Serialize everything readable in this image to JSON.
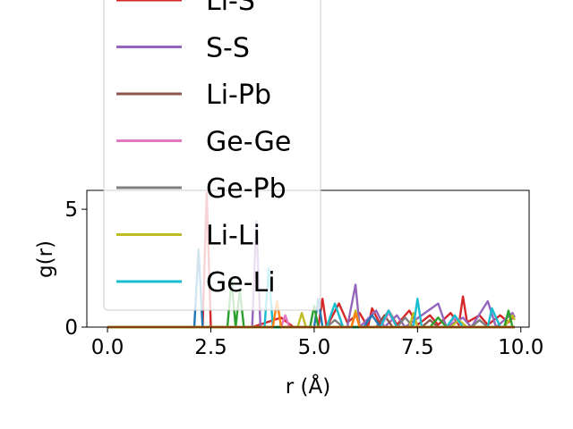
{
  "chart_data": {
    "type": "line",
    "xlabel": "r (Å)",
    "ylabel": "g(r)",
    "xlim": [
      -0.5,
      10.2
    ],
    "ylim": [
      0,
      5.8
    ],
    "xticks": [
      "0.0",
      "2.5",
      "5.0",
      "7.5",
      "10.0"
    ],
    "xtick_values": [
      0,
      2.5,
      5,
      7.5,
      10
    ],
    "yticks": [
      "0",
      "5"
    ],
    "ytick_values": [
      0,
      5
    ],
    "grid": false,
    "legend_position": "upper-left, overflowing above plot",
    "series": [
      {
        "name": "Li-S",
        "color": "#d62728",
        "points": [
          [
            0,
            0
          ],
          [
            2.3,
            0
          ],
          [
            2.4,
            5.7
          ],
          [
            2.5,
            0
          ],
          [
            3.5,
            0
          ],
          [
            4.2,
            0.4
          ],
          [
            4.5,
            0
          ],
          [
            5.1,
            0
          ],
          [
            5.2,
            1.2
          ],
          [
            5.3,
            0
          ],
          [
            5.6,
            1.0
          ],
          [
            5.8,
            0.2
          ],
          [
            6.1,
            0.6
          ],
          [
            6.3,
            0
          ],
          [
            6.4,
            0.8
          ],
          [
            6.6,
            0.1
          ],
          [
            6.8,
            0.7
          ],
          [
            7.0,
            0.1
          ],
          [
            7.3,
            0.7
          ],
          [
            7.5,
            0.1
          ],
          [
            7.8,
            0.5
          ],
          [
            8.0,
            0.1
          ],
          [
            8.3,
            0.6
          ],
          [
            8.5,
            0.1
          ],
          [
            8.6,
            1.3
          ],
          [
            8.7,
            0.2
          ],
          [
            9.0,
            0.5
          ],
          [
            9.2,
            0.1
          ],
          [
            9.5,
            0.5
          ],
          [
            9.7,
            0.2
          ],
          [
            9.85,
            0.5
          ]
        ]
      },
      {
        "name": "S-S",
        "color": "#9467bd",
        "points": [
          [
            0,
            0
          ],
          [
            3.5,
            0
          ],
          [
            3.6,
            4.5
          ],
          [
            3.7,
            0
          ],
          [
            5.8,
            0
          ],
          [
            6.0,
            1.8
          ],
          [
            6.1,
            0
          ],
          [
            6.5,
            0.7
          ],
          [
            6.7,
            0
          ],
          [
            7.0,
            0.5
          ],
          [
            7.2,
            0
          ],
          [
            8.0,
            1.0
          ],
          [
            8.2,
            0
          ],
          [
            8.6,
            0.4
          ],
          [
            8.8,
            0
          ],
          [
            9.2,
            1.1
          ],
          [
            9.4,
            0
          ],
          [
            9.8,
            0.6
          ],
          [
            9.85,
            0.4
          ]
        ]
      },
      {
        "name": "Li-Pb",
        "color": "#8c564b",
        "points": [
          [
            0,
            0
          ],
          [
            6.5,
            0
          ],
          [
            6.7,
            0.5
          ],
          [
            6.9,
            0
          ],
          [
            7.6,
            0
          ],
          [
            7.8,
            0.3
          ],
          [
            8.0,
            0
          ],
          [
            8.8,
            0
          ],
          [
            9.0,
            0.3
          ],
          [
            9.2,
            0
          ],
          [
            9.85,
            0
          ]
        ]
      },
      {
        "name": "Ge-Ge",
        "color": "#e377c2",
        "points": [
          [
            0,
            0
          ],
          [
            4.2,
            0
          ],
          [
            4.3,
            0.5
          ],
          [
            4.4,
            0
          ],
          [
            6.6,
            0
          ],
          [
            6.8,
            0.6
          ],
          [
            7.0,
            0
          ],
          [
            8.2,
            0
          ],
          [
            8.4,
            0.4
          ],
          [
            8.6,
            0
          ],
          [
            9.85,
            0
          ]
        ]
      },
      {
        "name": "Ge-Pb",
        "color": "#7f7f7f",
        "points": [
          [
            0,
            0
          ],
          [
            5.3,
            0
          ],
          [
            5.5,
            0.3
          ],
          [
            5.7,
            0
          ],
          [
            7.0,
            0
          ],
          [
            7.2,
            0.4
          ],
          [
            7.4,
            0
          ],
          [
            8.8,
            0
          ],
          [
            9.0,
            0.3
          ],
          [
            9.2,
            0
          ],
          [
            9.85,
            0
          ]
        ]
      },
      {
        "name": "Li-Li",
        "color": "#bcbd22",
        "points": [
          [
            0,
            0
          ],
          [
            4.6,
            0
          ],
          [
            4.7,
            0.6
          ],
          [
            4.8,
            0
          ],
          [
            5.9,
            0
          ],
          [
            6.0,
            0.7
          ],
          [
            6.1,
            0
          ],
          [
            7.3,
            0
          ],
          [
            7.4,
            0.6
          ],
          [
            7.5,
            0
          ],
          [
            8.3,
            0
          ],
          [
            8.5,
            0.3
          ],
          [
            8.7,
            0
          ],
          [
            9.6,
            0
          ],
          [
            9.8,
            0.5
          ],
          [
            9.85,
            0.3
          ]
        ]
      },
      {
        "name": "Ge-Li",
        "color": "#17becf",
        "points": [
          [
            0,
            0
          ],
          [
            3.8,
            0
          ],
          [
            3.9,
            2.5
          ],
          [
            4.0,
            0
          ],
          [
            5.3,
            0
          ],
          [
            5.5,
            1.0
          ],
          [
            5.7,
            0
          ],
          [
            6.6,
            0
          ],
          [
            6.8,
            0.7
          ],
          [
            7.0,
            0
          ],
          [
            7.4,
            0
          ],
          [
            7.5,
            1.2
          ],
          [
            7.6,
            0
          ],
          [
            8.2,
            0
          ],
          [
            8.4,
            0.5
          ],
          [
            8.6,
            0
          ],
          [
            9.2,
            0
          ],
          [
            9.3,
            0.8
          ],
          [
            9.5,
            0
          ],
          [
            9.85,
            0
          ]
        ]
      },
      {
        "name": "",
        "color": "#1f77b4",
        "points": [
          [
            0,
            0
          ],
          [
            2.1,
            0
          ],
          [
            2.2,
            3.3
          ],
          [
            2.3,
            0
          ],
          [
            5.0,
            0
          ],
          [
            5.1,
            1.2
          ],
          [
            5.2,
            0
          ],
          [
            6.2,
            0
          ],
          [
            6.4,
            0.5
          ],
          [
            6.6,
            0
          ],
          [
            9.85,
            0
          ]
        ]
      },
      {
        "name": "",
        "color": "#2ca02c",
        "points": [
          [
            0,
            0
          ],
          [
            2.9,
            0
          ],
          [
            3.0,
            2.0
          ],
          [
            3.1,
            0
          ],
          [
            3.2,
            1.6
          ],
          [
            3.3,
            0
          ],
          [
            4.9,
            0
          ],
          [
            5.0,
            0.9
          ],
          [
            5.1,
            0
          ],
          [
            7.8,
            0
          ],
          [
            8.0,
            0.4
          ],
          [
            8.2,
            0
          ],
          [
            9.6,
            0
          ],
          [
            9.7,
            0.7
          ],
          [
            9.8,
            0
          ],
          [
            9.85,
            0
          ]
        ]
      },
      {
        "name": "",
        "color": "#ff7f0e",
        "points": [
          [
            0,
            0
          ],
          [
            4.0,
            0
          ],
          [
            4.1,
            1.1
          ],
          [
            4.2,
            0
          ],
          [
            5.9,
            0
          ],
          [
            6.0,
            0.6
          ],
          [
            6.1,
            0
          ],
          [
            9.85,
            0
          ]
        ]
      }
    ]
  }
}
